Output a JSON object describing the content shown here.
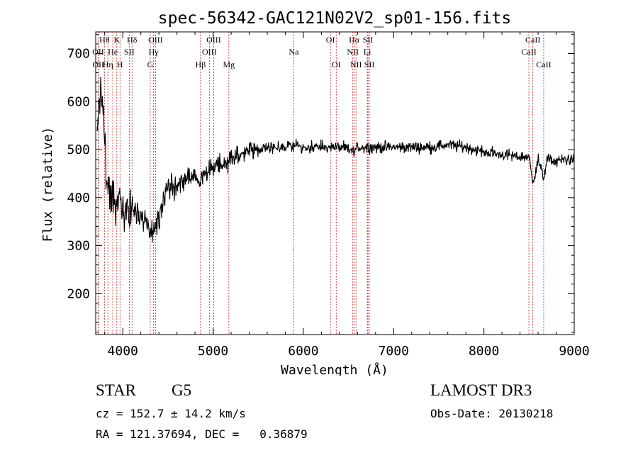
{
  "chart_data": {
    "type": "line",
    "title": "spec-56342-GAC121N02V2_sp01-156.fits",
    "xlabel": "Wavelength (Å)",
    "ylabel": "Flux (relative)",
    "xlim": [
      3700,
      9000
    ],
    "ylim": [
      115,
      745
    ],
    "xticks": [
      4000,
      5000,
      6000,
      7000,
      8000,
      9000
    ],
    "yticks": [
      200,
      300,
      400,
      500,
      600,
      700
    ],
    "xtick_labels": [
      "4000",
      "5000",
      "6000",
      "7000",
      "8000",
      "9000"
    ],
    "ytick_labels": [
      "200",
      "300",
      "400",
      "500",
      "600",
      "700"
    ],
    "series": [
      {
        "name": "spectrum",
        "color": "#000000",
        "x": [
          3720,
          3740,
          3760,
          3780,
          3800,
          3820,
          3840,
          3860,
          3880,
          3900,
          3920,
          3940,
          3960,
          3980,
          4000,
          4030,
          4060,
          4100,
          4150,
          4200,
          4250,
          4300,
          4330,
          4360,
          4400,
          4450,
          4500,
          4600,
          4700,
          4800,
          4860,
          4900,
          5000,
          5100,
          5200,
          5300,
          5400,
          5500,
          5600,
          5700,
          5800,
          5900,
          6000,
          6100,
          6200,
          6300,
          6400,
          6500,
          6560,
          6600,
          6700,
          6800,
          6900,
          7000,
          7200,
          7400,
          7600,
          7800,
          8000,
          8200,
          8400,
          8500,
          8540,
          8600,
          8660,
          8700,
          8800,
          8900,
          9000
        ],
        "y": [
          560,
          600,
          620,
          580,
          520,
          440,
          420,
          400,
          410,
          400,
          380,
          400,
          410,
          390,
          370,
          360,
          370,
          380,
          360,
          360,
          350,
          330,
          320,
          340,
          370,
          400,
          420,
          430,
          440,
          445,
          430,
          455,
          460,
          470,
          480,
          490,
          495,
          500,
          505,
          505,
          505,
          510,
          505,
          505,
          505,
          505,
          505,
          500,
          495,
          505,
          505,
          505,
          505,
          505,
          505,
          505,
          510,
          505,
          495,
          490,
          485,
          485,
          430,
          480,
          440,
          480,
          475,
          480,
          480
        ]
      }
    ],
    "lines": [
      {
        "label": "Hθ",
        "wavelength": 3797,
        "row": 1
      },
      {
        "label": "OII",
        "wavelength": 3727,
        "row": 2
      },
      {
        "label": "OII",
        "wavelength": 3729,
        "row": 3
      },
      {
        "label": "Hη",
        "wavelength": 3835,
        "row": 3
      },
      {
        "label": "He",
        "wavelength": 3889,
        "row": 2
      },
      {
        "label": "K",
        "wavelength": 3934,
        "row": 1
      },
      {
        "label": "SII",
        "wavelength": 4072,
        "row": 2
      },
      {
        "label": "H",
        "wavelength": 3969,
        "row": 3
      },
      {
        "label": "Hδ",
        "wavelength": 4102,
        "row": 1
      },
      {
        "label": "OIII",
        "wavelength": 4363,
        "row": 1
      },
      {
        "label": "Hγ",
        "wavelength": 4341,
        "row": 2
      },
      {
        "label": "G",
        "wavelength": 4304,
        "row": 3
      },
      {
        "label": "Hβ",
        "wavelength": 4861,
        "row": 3
      },
      {
        "label": "OIII",
        "wavelength": 5007,
        "row": 1
      },
      {
        "label": "OIII",
        "wavelength": 4959,
        "row": 2
      },
      {
        "label": "Mg",
        "wavelength": 5175,
        "row": 3
      },
      {
        "label": "Na",
        "wavelength": 5894,
        "row": 2
      },
      {
        "label": "OI",
        "wavelength": 6300,
        "row": 1
      },
      {
        "label": "OI",
        "wavelength": 6364,
        "row": 3
      },
      {
        "label": "Hα",
        "wavelength": 6563,
        "row": 1
      },
      {
        "label": "SII",
        "wavelength": 6716,
        "row": 1
      },
      {
        "label": "NII",
        "wavelength": 6548,
        "row": 2
      },
      {
        "label": "Li",
        "wavelength": 6708,
        "row": 2
      },
      {
        "label": "NII",
        "wavelength": 6583,
        "row": 3
      },
      {
        "label": "SII",
        "wavelength": 6731,
        "row": 3
      },
      {
        "label": "CaII",
        "wavelength": 8542,
        "row": 1
      },
      {
        "label": "CaII",
        "wavelength": 8498,
        "row": 2
      },
      {
        "label": "CaII",
        "wavelength": 8662,
        "row": 3
      }
    ]
  },
  "info": {
    "object_class": "STAR",
    "subclass": "G5",
    "survey": "LAMOST DR3",
    "redshift": "cz = 152.7 ± 14.2 km/s",
    "obs_date": "Obs-Date: 20130218",
    "coords": "RA = 121.37694, DEC =   0.36879"
  },
  "colors": {
    "axis": "#000000",
    "spectrum": "#000000",
    "line_marker": "#cc2222"
  }
}
